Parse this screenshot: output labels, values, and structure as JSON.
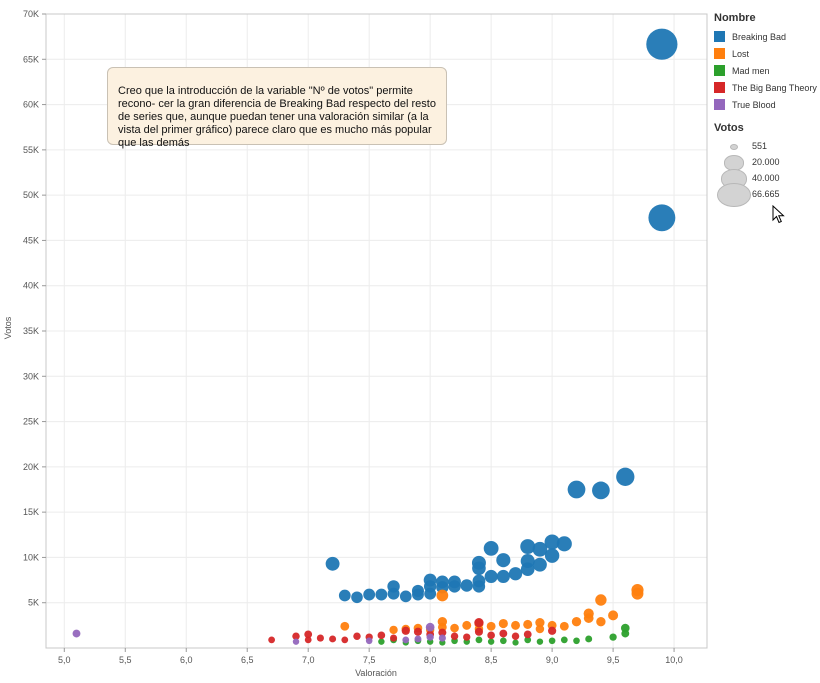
{
  "chart_data": {
    "type": "scatter",
    "xlabel": "Valoración",
    "ylabel": "Votos",
    "xlim": [
      4.85,
      10.27
    ],
    "ylim": [
      0,
      70000
    ],
    "grid": true,
    "x_ticks": [
      5.0,
      5.5,
      6.0,
      6.5,
      7.0,
      7.5,
      8.0,
      8.5,
      9.0,
      9.5,
      10.0
    ],
    "x_tick_labels": [
      "5,0",
      "5,5",
      "6,0",
      "6,5",
      "7,0",
      "7,5",
      "8,0",
      "8,5",
      "9,0",
      "9,5",
      "10,0"
    ],
    "y_ticks": [
      5000,
      10000,
      15000,
      20000,
      25000,
      30000,
      35000,
      40000,
      45000,
      50000,
      55000,
      60000,
      65000,
      70000
    ],
    "y_tick_labels": [
      "5K",
      "10K",
      "15K",
      "20K",
      "25K",
      "30K",
      "35K",
      "40K",
      "45K",
      "50K",
      "55K",
      "60K",
      "65K",
      "70K"
    ],
    "legend_title": "Nombre",
    "legend_placement": "right",
    "size_legend_title": "Votos",
    "size_legend": [
      {
        "label": "551",
        "value": 551
      },
      {
        "label": "20.000",
        "value": 20000
      },
      {
        "label": "40.000",
        "value": 40000
      },
      {
        "label": "66.665",
        "value": 66665
      }
    ],
    "series": [
      {
        "name": "Breaking Bad",
        "color": "#1f77b4",
        "points": [
          [
            7.2,
            9300
          ],
          [
            7.3,
            5800
          ],
          [
            7.4,
            5600
          ],
          [
            7.5,
            5900
          ],
          [
            7.6,
            5900
          ],
          [
            7.7,
            6800
          ],
          [
            7.7,
            6000
          ],
          [
            7.8,
            5700
          ],
          [
            7.9,
            6300
          ],
          [
            7.9,
            5900
          ],
          [
            8.0,
            7500
          ],
          [
            8.0,
            6800
          ],
          [
            8.0,
            6000
          ],
          [
            8.1,
            7300
          ],
          [
            8.1,
            6700
          ],
          [
            8.2,
            7300
          ],
          [
            8.2,
            6800
          ],
          [
            8.3,
            6900
          ],
          [
            8.4,
            9400
          ],
          [
            8.4,
            8800
          ],
          [
            8.4,
            7400
          ],
          [
            8.4,
            6800
          ],
          [
            8.5,
            11000
          ],
          [
            8.5,
            7900
          ],
          [
            8.6,
            9700
          ],
          [
            8.6,
            7900
          ],
          [
            8.7,
            8200
          ],
          [
            8.8,
            11200
          ],
          [
            8.8,
            9600
          ],
          [
            8.8,
            8700
          ],
          [
            8.9,
            10900
          ],
          [
            8.9,
            9200
          ],
          [
            9.0,
            11700
          ],
          [
            9.0,
            10200
          ],
          [
            9.1,
            11500
          ],
          [
            9.2,
            17500
          ],
          [
            9.4,
            17400
          ],
          [
            9.6,
            18900
          ],
          [
            9.9,
            47500
          ],
          [
            9.9,
            66665
          ]
        ]
      },
      {
        "name": "Lost",
        "color": "#ff7f0e",
        "points": [
          [
            7.3,
            2400
          ],
          [
            7.7,
            2000
          ],
          [
            7.8,
            2100
          ],
          [
            7.9,
            2200
          ],
          [
            8.0,
            2000
          ],
          [
            8.1,
            2900
          ],
          [
            8.1,
            2300
          ],
          [
            8.1,
            5800
          ],
          [
            8.2,
            2200
          ],
          [
            8.3,
            2500
          ],
          [
            8.4,
            2700
          ],
          [
            8.4,
            2100
          ],
          [
            8.5,
            2400
          ],
          [
            8.6,
            2700
          ],
          [
            8.7,
            2500
          ],
          [
            8.8,
            2600
          ],
          [
            8.9,
            2800
          ],
          [
            8.9,
            2100
          ],
          [
            9.0,
            2500
          ],
          [
            9.1,
            2400
          ],
          [
            9.2,
            2900
          ],
          [
            9.3,
            3300
          ],
          [
            9.3,
            3800
          ],
          [
            9.4,
            2900
          ],
          [
            9.4,
            5300
          ],
          [
            9.5,
            3600
          ],
          [
            9.7,
            6000
          ],
          [
            9.7,
            6400
          ]
        ]
      },
      {
        "name": "Mad men",
        "color": "#2ca02c",
        "points": [
          [
            7.6,
            700
          ],
          [
            7.7,
            900
          ],
          [
            7.8,
            600
          ],
          [
            7.9,
            800
          ],
          [
            8.0,
            700
          ],
          [
            8.1,
            600
          ],
          [
            8.2,
            800
          ],
          [
            8.3,
            700
          ],
          [
            8.4,
            900
          ],
          [
            8.5,
            700
          ],
          [
            8.6,
            800
          ],
          [
            8.7,
            600
          ],
          [
            8.8,
            900
          ],
          [
            8.9,
            700
          ],
          [
            9.0,
            800
          ],
          [
            9.1,
            900
          ],
          [
            9.2,
            800
          ],
          [
            9.3,
            1000
          ],
          [
            9.5,
            1200
          ],
          [
            9.6,
            1600
          ],
          [
            9.6,
            2200
          ]
        ]
      },
      {
        "name": "The Big Bang Theory",
        "color": "#d62728",
        "points": [
          [
            6.7,
            900
          ],
          [
            6.9,
            1300
          ],
          [
            7.0,
            1500
          ],
          [
            7.0,
            900
          ],
          [
            7.1,
            1100
          ],
          [
            7.2,
            1000
          ],
          [
            7.3,
            900
          ],
          [
            7.4,
            1300
          ],
          [
            7.5,
            1200
          ],
          [
            7.6,
            1400
          ],
          [
            7.7,
            1100
          ],
          [
            7.8,
            1900
          ],
          [
            7.9,
            1800
          ],
          [
            8.0,
            1500
          ],
          [
            8.1,
            1700
          ],
          [
            8.2,
            1300
          ],
          [
            8.3,
            1200
          ],
          [
            8.4,
            2800
          ],
          [
            8.4,
            1800
          ],
          [
            8.5,
            1400
          ],
          [
            8.6,
            1600
          ],
          [
            8.7,
            1300
          ],
          [
            8.8,
            1500
          ],
          [
            9.0,
            1900
          ]
        ]
      },
      {
        "name": "True Blood",
        "color": "#9467bd",
        "points": [
          [
            5.1,
            1600
          ],
          [
            6.9,
            700
          ],
          [
            7.5,
            800
          ],
          [
            7.8,
            900
          ],
          [
            7.9,
            1000
          ],
          [
            8.0,
            2300
          ],
          [
            8.0,
            1200
          ],
          [
            8.1,
            1100
          ]
        ]
      }
    ],
    "annotation": "Creo que la introducción de la variable \"Nº de votos\" permite recono- cer la gran diferencia de Breaking Bad respecto del resto de series que, aunque puedan tener una valoración similar (a la vista del primer gráfico) parece claro que es mucho más popular que las demás"
  },
  "icons": {
    "cursor": "mouse-pointer-icon"
  }
}
